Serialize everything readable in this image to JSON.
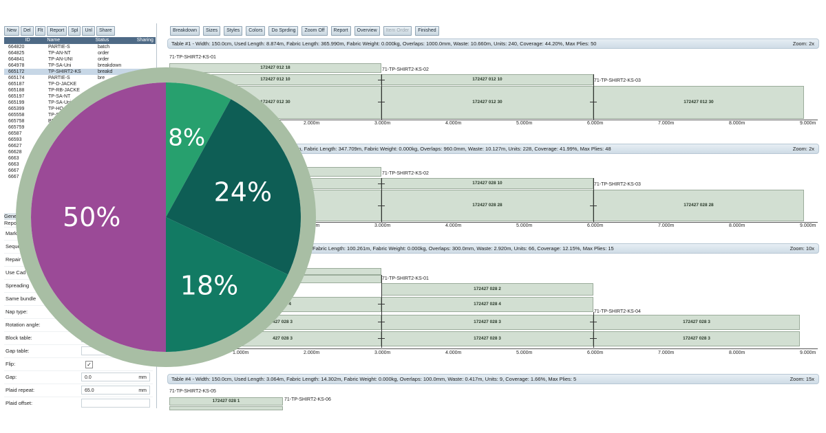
{
  "left_toolbar": [
    "New",
    "Del",
    "Flt",
    "Report",
    "Spl",
    "Unl",
    "Share"
  ],
  "list_columns": [
    "ID",
    "Name",
    "Status",
    "Sharing"
  ],
  "list_rows": [
    {
      "id": "664820",
      "name": "PARTIE-S",
      "status": "batch"
    },
    {
      "id": "664825",
      "name": "TP-AN-NT",
      "status": "order"
    },
    {
      "id": "664841",
      "name": "TP-AN-UNI",
      "status": "order"
    },
    {
      "id": "664978",
      "name": "TP-SA-Uni",
      "status": "breakdown"
    },
    {
      "id": "665172",
      "name": "TP-SHIRT2-KS",
      "status": "breakd"
    },
    {
      "id": "665174",
      "name": "PARTIE-S",
      "status": "bre"
    },
    {
      "id": "665187",
      "name": "TP-D-JACKE",
      "status": ""
    },
    {
      "id": "665188",
      "name": "TP-RB-JACKE",
      "status": ""
    },
    {
      "id": "665197",
      "name": "TP-SA-NT",
      "status": ""
    },
    {
      "id": "665199",
      "name": "TP-SA-Uni",
      "status": ""
    },
    {
      "id": "665399",
      "name": "TP-HO",
      "status": ""
    },
    {
      "id": "665558",
      "name": "TP-S",
      "status": ""
    },
    {
      "id": "665758",
      "name": "BP",
      "status": ""
    },
    {
      "id": "665759",
      "name": "BP",
      "status": ""
    },
    {
      "id": "66587",
      "name": "",
      "status": ""
    },
    {
      "id": "66593",
      "name": "",
      "status": ""
    },
    {
      "id": "66627",
      "name": "",
      "status": ""
    },
    {
      "id": "66628",
      "name": "",
      "status": ""
    },
    {
      "id": "6663",
      "name": "",
      "status": ""
    },
    {
      "id": "6663",
      "name": "",
      "status": ""
    },
    {
      "id": "6667",
      "name": "",
      "status": ""
    },
    {
      "id": "6667",
      "name": "",
      "status": ""
    }
  ],
  "props_header": [
    "Gene",
    "Repo"
  ],
  "props": [
    {
      "label": "Marke"
    },
    {
      "label": "Seque"
    },
    {
      "label": "Repair numbers"
    },
    {
      "label": "Use Cad"
    },
    {
      "label": "Spreading"
    },
    {
      "label": "Same bundle"
    },
    {
      "label": "Nap type:"
    },
    {
      "label": "Rotation angle:"
    },
    {
      "label": "Block table:"
    },
    {
      "label": "Gap table:"
    },
    {
      "label": "Flip:",
      "check": "✓"
    },
    {
      "label": "Gap:",
      "value": "0.0",
      "unit": "mm"
    },
    {
      "label": "Plaid repeat:",
      "value": "65.0",
      "unit": "mm"
    },
    {
      "label": "Plaid offset:"
    }
  ],
  "right_toolbar": [
    {
      "label": "Breakdown",
      "enabled": true
    },
    {
      "label": "Sizes",
      "enabled": true
    },
    {
      "label": "Styles",
      "enabled": true
    },
    {
      "label": "Colors",
      "enabled": true
    },
    {
      "label": "Do Sprding",
      "enabled": true
    },
    {
      "label": "Zoom Off",
      "enabled": true
    },
    {
      "label": "Report",
      "enabled": true
    },
    {
      "label": "Overview",
      "enabled": true
    },
    {
      "label": "Item Order",
      "enabled": false
    },
    {
      "label": "Finished",
      "enabled": true
    }
  ],
  "tables": [
    {
      "info": "Table #1 - Width: 150.0cm, Used Length: 8.874m, Fabric Length: 365.990m, Fabric Weight: 0.000kg, Overlaps: 1000.0mm, Waste: 10.660m, Units: 240, Coverage: 44.20%, Max Plies: 50",
      "zoom": "Zoom: 2x"
    },
    {
      "info": "4m, Fabric Length: 347.709m, Fabric Weight: 0.000kg, Overlaps: 960.0mm, Waste: 10.127m, Units: 228, Coverage: 41.99%, Max Plies: 48",
      "zoom": "Zoom: 2x"
    },
    {
      "info": "Fabric Length: 100.261m, Fabric Weight: 0.000kg, Overlaps: 300.0mm, Waste: 2.920m, Units: 66, Coverage: 12.15%, Max Plies: 15",
      "zoom": "Zoom: 10x"
    },
    {
      "info": "Table #4 - Width: 150.0cm, Used Length: 3.064m, Fabric Length: 14.302m, Fabric Weight: 0.000kg, Overlaps: 100.0mm, Waste: 0.417m, Units: 9, Coverage: 1.66%, Max Plies: 5",
      "zoom": "Zoom: 15x"
    }
  ],
  "t1": {
    "l1": "71-TP-SHIRT2-KS-01",
    "l2": "71-TP-SHIRT2-KS-02",
    "l3": "71-TP-SHIRT2-KS-03",
    "s1": "172427 012 18",
    "s2a": "172427 012 10",
    "s2b": "172427 012 10",
    "s3a": "172427 012 30",
    "s3b": "172427 012 30",
    "s3c": "172427 012 30"
  },
  "t2": {
    "l2": "71-TP-SHIRT2-KS-02",
    "l3": "71-TP-SHIRT2-KS-03",
    "s2b": "172427 028 10",
    "s3b": "172427 028 28",
    "s3c": "172427 028 28"
  },
  "t3": {
    "l1": "71-TP-SHIRT2-KS-01",
    "l4": "71-TP-SHIRT2-KS-04",
    "s1": "172427 028 2",
    "s2a": "2 4",
    "s2b": "172427 028 4",
    "s3a": "427 028 3",
    "s3b": "172427 028 3",
    "s3c": "172427 028 3",
    "s4a": "427 028 3",
    "s4b": "172427 028 3",
    "s4c": "172427 028 3"
  },
  "t4": {
    "l1": "71-TP-SHIRT2-KS-05",
    "l2": "71-TP-SHIRT2-KS-06",
    "s1": "172427 028 1"
  },
  "axis_ticks": [
    "1.000m",
    "2.000m",
    "3.000m",
    "4.000m",
    "5.000m",
    "6.000m",
    "7.000m",
    "8.000m",
    "9.000m"
  ],
  "chart_data": {
    "type": "pie",
    "values": [
      8,
      24,
      18,
      50
    ],
    "labels": [
      "8%",
      "24%",
      "18%",
      "50%"
    ],
    "colors": [
      "#27a06e",
      "#0e5e55",
      "#127a63",
      "#9b4a97"
    ],
    "ring_color": "#a8bea4"
  }
}
